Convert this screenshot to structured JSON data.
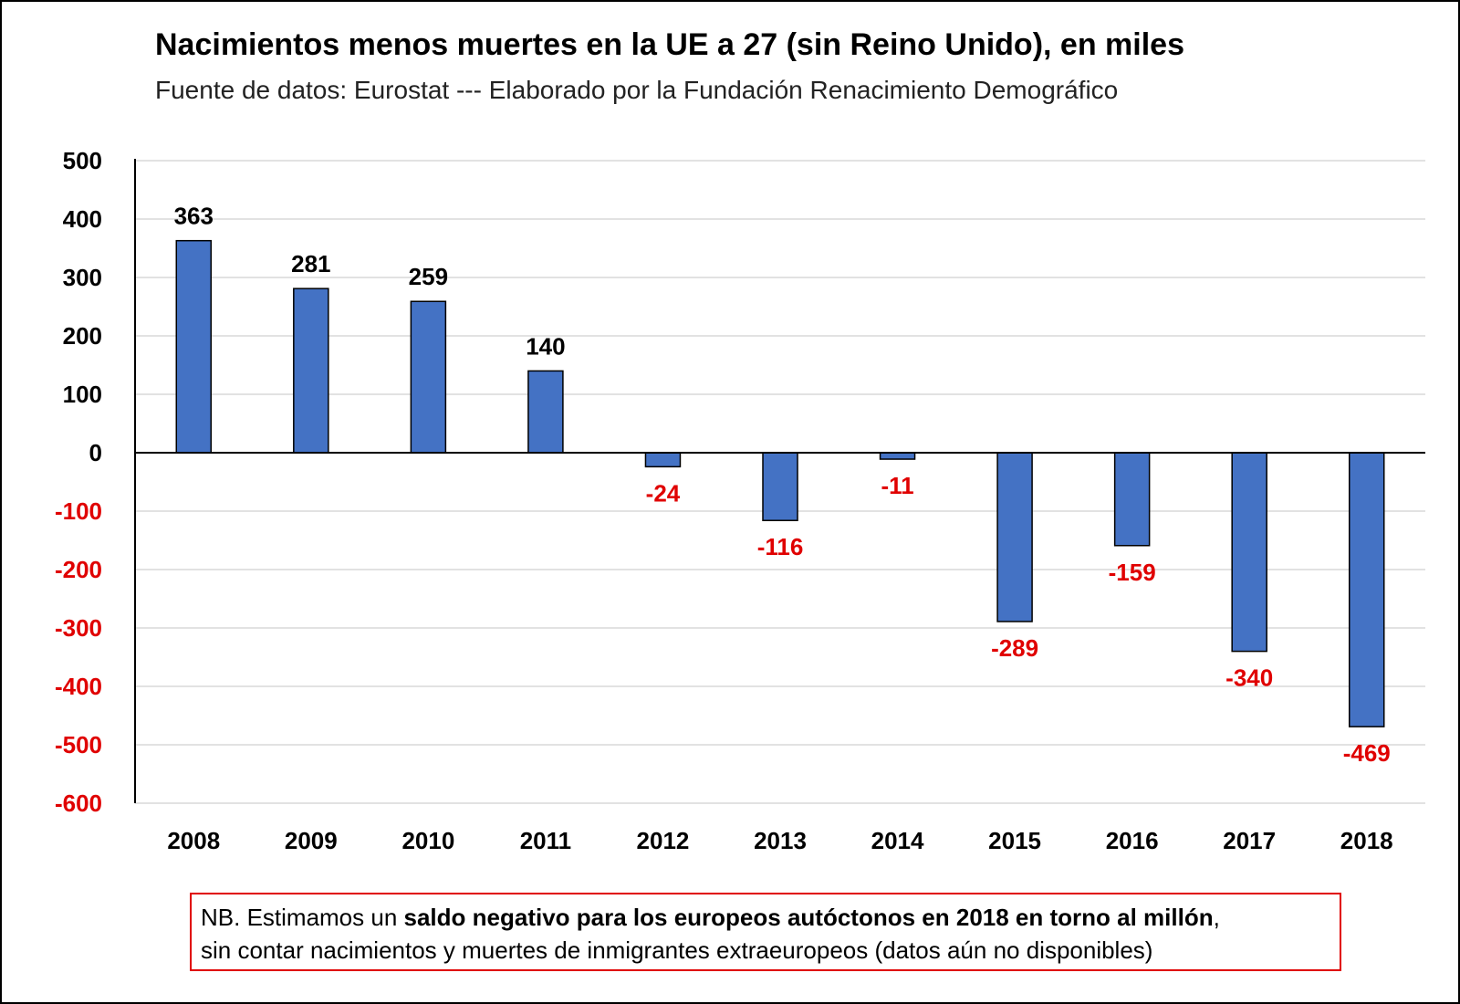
{
  "chart_data": {
    "type": "bar",
    "title": "Nacimientos menos muertes en la UE a 27 (sin Reino Unido), en miles",
    "subtitle": "Fuente de datos: Eurostat  --- Elaborado por la Fundación Renacimiento Demográfico",
    "categories": [
      "2008",
      "2009",
      "2010",
      "2011",
      "2012",
      "2013",
      "2014",
      "2015",
      "2016",
      "2017",
      "2018"
    ],
    "values": [
      363,
      281,
      259,
      140,
      -24,
      -116,
      -11,
      -289,
      -159,
      -340,
      -469
    ],
    "ylim": [
      -600,
      500
    ],
    "yticks": [
      500,
      400,
      300,
      200,
      100,
      0,
      -100,
      -200,
      -300,
      -400,
      -500,
      -600
    ],
    "grid": true,
    "legend": "none",
    "colors": {
      "bar": "#4472c4",
      "bar_outline": "#000000",
      "positive_label": "#000000",
      "negative_label": "#e00000",
      "grid": "#d9d9d9",
      "note_border": "#e00000"
    }
  },
  "note": {
    "part1": "NB. Estimamos un ",
    "part2": "saldo  negativo para los europeos autóctonos  en 2018",
    "part3": " en torno al millón",
    "part4": ",",
    "line2": "sin contar nacimientos y muertes  de  inmigrantes extraeuropeos (datos aún no disponibles)"
  }
}
